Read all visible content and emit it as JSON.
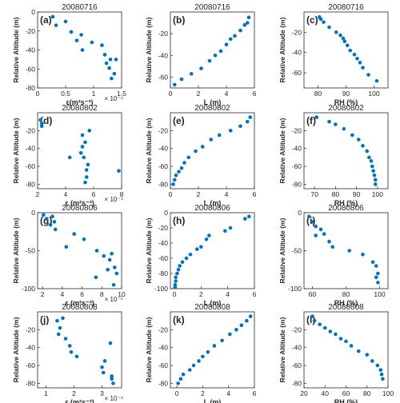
{
  "figure": {
    "colors": {
      "marker": "#0072BD",
      "axes": "#262626",
      "background": "#ffffff"
    }
  },
  "chart_data": [
    {
      "type": "scatter",
      "panel": "(a)",
      "title": "20080716",
      "ylabel": "Relative Altitude (m)",
      "xlabel": "ε(m²s⁻³)",
      "x_exponent": "× 10⁻⁴",
      "xlim": [
        0,
        1.5
      ],
      "xticks": [
        0,
        0.5,
        1,
        1.5
      ],
      "xticklabels": [
        "0",
        "0.5",
        "1",
        "1.5"
      ],
      "ylim": [
        -80,
        0
      ],
      "yticks": [
        -80,
        -60,
        -40,
        -20,
        0
      ],
      "yticklabels": [
        "-80",
        "-60",
        "-40",
        "-20",
        "0"
      ],
      "x": [
        0.27,
        0.33,
        0.5,
        0.6,
        0.7,
        0.78,
        0.8,
        0.97,
        1.15,
        1.2,
        1.3,
        1.23,
        1.4,
        1.28,
        1.37,
        1.32
      ],
      "y": [
        -5,
        -14,
        -10,
        -21,
        -30,
        -24,
        -40,
        -32,
        -35,
        -45,
        -50,
        -54,
        -50,
        -59,
        -65,
        -70
      ]
    },
    {
      "type": "scatter",
      "panel": "(b)",
      "title": "20080716",
      "ylabel": "Relative Altitude (m)",
      "xlabel": "L (m)",
      "xlim": [
        0,
        6
      ],
      "xticks": [
        0,
        2,
        4,
        6
      ],
      "xticklabels": [
        "0",
        "2",
        "4",
        "6"
      ],
      "ylim": [
        -70,
        0
      ],
      "yticks": [
        -60,
        -40,
        -20
      ],
      "yticklabels": [
        "-60",
        "-40",
        "-20"
      ],
      "x": [
        5.6,
        5.5,
        5.3,
        5.0,
        4.6,
        4.3,
        4.0,
        3.6,
        3.2,
        2.8,
        2.2,
        1.5,
        0.8,
        0.3
      ],
      "y": [
        -5,
        -10,
        -12,
        -17,
        -22,
        -25,
        -30,
        -36,
        -40,
        -45,
        -52,
        -57,
        -62,
        -67
      ]
    },
    {
      "type": "scatter",
      "panel": "(c)",
      "title": "20080716",
      "ylabel": "Relative Altitude (m)",
      "xlabel": "RH (%)",
      "xlim": [
        75,
        105
      ],
      "xticks": [
        80,
        90,
        100
      ],
      "xticklabels": [
        "80",
        "90",
        "100"
      ],
      "ylim": [
        -75,
        0
      ],
      "yticks": [
        -60,
        -40,
        -20
      ],
      "yticklabels": [
        "-60",
        "-40",
        "-20"
      ],
      "x": [
        80.5,
        81,
        82,
        84,
        86.5,
        88,
        89,
        89.5,
        90.5,
        91.5,
        93,
        94,
        95,
        96,
        98,
        101
      ],
      "y": [
        -5,
        -7,
        -10,
        -15,
        -20,
        -23,
        -26,
        -29,
        -33,
        -38,
        -42,
        -46,
        -50,
        -55,
        -62,
        -68
      ]
    },
    {
      "type": "scatter",
      "panel": "(d)",
      "title": "20080802",
      "ylabel": "Relative Altitude (m)",
      "xlabel": "ε (m²s⁻³)",
      "x_exponent": "× 10⁻⁴",
      "xlim": [
        2,
        8
      ],
      "xticks": [
        2,
        4,
        6,
        8
      ],
      "xticklabels": [
        "2",
        "4",
        "6",
        "8"
      ],
      "ylim": [
        -85,
        0
      ],
      "yticks": [
        -80,
        -60,
        -40,
        -20
      ],
      "yticklabels": [
        "-80",
        "-60",
        "-40",
        "-20"
      ],
      "x": [
        2.2,
        2.3,
        2.3,
        5.7,
        5.2,
        5.4,
        5.2,
        5.1,
        4.3,
        5.3,
        5.6,
        5.5,
        7.8,
        5.5,
        5.4
      ],
      "y": [
        -8,
        -12,
        -15,
        -20,
        -25,
        -33,
        -38,
        -45,
        -50,
        -50,
        -58,
        -64,
        -65,
        -72,
        -78
      ]
    },
    {
      "type": "scatter",
      "panel": "(e)",
      "title": "20080802",
      "ylabel": "Relative Altitude (m)",
      "xlabel": "L (m)",
      "xlim": [
        0,
        6
      ],
      "xticks": [
        0,
        2,
        4,
        6
      ],
      "xticklabels": [
        "0",
        "2",
        "4",
        "6"
      ],
      "ylim": [
        -85,
        0
      ],
      "yticks": [
        -80,
        -60,
        -40,
        -20
      ],
      "yticklabels": [
        "-80",
        "-60",
        "-40",
        "-20"
      ],
      "x": [
        5.7,
        5.5,
        5.0,
        4.3,
        3.5,
        2.9,
        2.3,
        1.8,
        1.3,
        1.0,
        0.8,
        0.6,
        0.4,
        0.3,
        0.2
      ],
      "y": [
        -5,
        -10,
        -15,
        -20,
        -25,
        -30,
        -38,
        -43,
        -50,
        -56,
        -62,
        -66,
        -70,
        -75,
        -80
      ]
    },
    {
      "type": "scatter",
      "panel": "(f)",
      "title": "20080802",
      "ylabel": "Relative Altitude (m)",
      "xlabel": "RH (%)",
      "xlim": [
        65,
        105
      ],
      "xticks": [
        70,
        80,
        90,
        100
      ],
      "xticklabels": [
        "70",
        "80",
        "90",
        "100"
      ],
      "ylim": [
        -85,
        0
      ],
      "yticks": [
        -80,
        -60,
        -40,
        -20
      ],
      "yticklabels": [
        "-80",
        "-60",
        "-40",
        "-20"
      ],
      "x": [
        71,
        77,
        80,
        84,
        88,
        91,
        93,
        95,
        96,
        97,
        97.5,
        98,
        98.5,
        99,
        99
      ],
      "y": [
        -5,
        -10,
        -13,
        -18,
        -25,
        -30,
        -37,
        -43,
        -50,
        -54,
        -60,
        -65,
        -70,
        -75,
        -80
      ]
    },
    {
      "type": "scatter",
      "panel": "(g)",
      "title": "20080806",
      "ylabel": "Relative Altitude (m)",
      "xlabel": "ε (m²s⁻³)",
      "x_exponent": "× 10⁻⁵",
      "xlim": [
        1.5,
        10
      ],
      "xticks": [
        2,
        4,
        6,
        8,
        10
      ],
      "xticklabels": [
        "2",
        "4",
        "6",
        "8",
        "10"
      ],
      "ylim": [
        -100,
        0
      ],
      "yticks": [
        -100,
        -50,
        0
      ],
      "yticklabels": [
        "-100",
        "-50",
        "0"
      ],
      "x": [
        2.1,
        2.4,
        3.0,
        3.2,
        2.8,
        3.3,
        4.4,
        5.2,
        6.2,
        7.5,
        8.2,
        8.8,
        9.0,
        9.3,
        8.6,
        7.4,
        9.5,
        9.2
      ],
      "y": [
        -3,
        -8,
        -5,
        -12,
        -16,
        -22,
        -45,
        -28,
        -35,
        -50,
        -57,
        -62,
        -54,
        -72,
        -75,
        -85,
        -80,
        -95
      ]
    },
    {
      "type": "scatter",
      "panel": "(h)",
      "title": "20080806",
      "ylabel": "Relative Altitude (m)",
      "xlabel": "L (m)",
      "xlim": [
        -0.3,
        6
      ],
      "xticks": [
        0,
        2,
        4,
        6
      ],
      "xticklabels": [
        "0",
        "2",
        "4",
        "6"
      ],
      "ylim": [
        -100,
        0
      ],
      "yticks": [
        -100,
        -80,
        -60,
        -40,
        -20,
        0
      ],
      "yticklabels": [
        "-100",
        "-80",
        "-60",
        "-40",
        "-20",
        "0"
      ],
      "x": [
        5.6,
        5.3,
        4.2,
        3.8,
        2.6,
        2.4,
        2.0,
        1.7,
        1.2,
        0.9,
        0.6,
        0.4,
        0.3,
        0.2,
        0.1,
        0.1,
        0.05,
        0.05
      ],
      "y": [
        -5,
        -8,
        -20,
        -24,
        -30,
        -35,
        -45,
        -48,
        -55,
        -60,
        -65,
        -70,
        -75,
        -80,
        -85,
        -90,
        -95,
        -98
      ]
    },
    {
      "type": "scatter",
      "panel": "(i)",
      "title": "20080806",
      "ylabel": "Relative Altitude (m)",
      "xlabel": "RH (%)",
      "xlim": [
        55,
        105
      ],
      "xticks": [
        60,
        80,
        100
      ],
      "xticklabels": [
        "60",
        "80",
        "100"
      ],
      "ylim": [
        -100,
        0
      ],
      "yticks": [
        -100,
        -50,
        0
      ],
      "yticklabels": [
        "-100",
        "-50",
        "0"
      ],
      "x": [
        58,
        60,
        62,
        65,
        67,
        62,
        70,
        72,
        82,
        90,
        96,
        98,
        99,
        98,
        99
      ],
      "y": [
        -5,
        -12,
        -18,
        -22,
        -28,
        -30,
        -38,
        -45,
        -50,
        -55,
        -65,
        -70,
        -80,
        -85,
        -92
      ]
    },
    {
      "type": "scatter",
      "panel": "(j)",
      "title": "20080808",
      "ylabel": "Relative Altitude (m)",
      "xlabel": "ε (m²s⁻³)",
      "x_exponent": "× 10⁻⁴",
      "xlim": [
        0.7,
        3.7
      ],
      "xticks": [
        1,
        2,
        3
      ],
      "xticklabels": [
        "1",
        "2",
        "3"
      ],
      "ylim": [
        -85,
        0
      ],
      "yticks": [
        -80,
        -60,
        -40,
        -20
      ],
      "yticklabels": [
        "-80",
        "-60",
        "-40",
        "-20"
      ],
      "x": [
        1.4,
        1.6,
        1.5,
        1.45,
        1.7,
        1.85,
        1.9,
        2.1,
        3.3,
        3.1,
        3.0,
        3.05,
        3.35,
        3.35,
        3.4
      ],
      "y": [
        -10,
        -7,
        -18,
        -25,
        -30,
        -38,
        -45,
        -50,
        -35,
        -55,
        -62,
        -68,
        -72,
        -75,
        -80
      ]
    },
    {
      "type": "scatter",
      "panel": "(k)",
      "title": "20080808",
      "ylabel": "Relative Altitude (m)",
      "xlabel": "L (m)",
      "xlim": [
        -0.5,
        6
      ],
      "xticks": [
        0,
        2,
        4,
        6
      ],
      "xticklabels": [
        "0",
        "2",
        "4",
        "6"
      ],
      "ylim": [
        -85,
        0
      ],
      "yticks": [
        -80,
        -60,
        -40,
        -20
      ],
      "yticklabels": [
        "-80",
        "-60",
        "-40",
        "-20"
      ],
      "x": [
        5.7,
        5.4,
        5.0,
        4.6,
        4.1,
        3.5,
        2.9,
        2.4,
        2.0,
        1.7,
        1.3,
        1.0,
        0.5,
        0.3,
        0.1
      ],
      "y": [
        -5,
        -10,
        -15,
        -20,
        -25,
        -32,
        -38,
        -45,
        -50,
        -55,
        -60,
        -65,
        -70,
        -75,
        -80
      ]
    },
    {
      "type": "scatter",
      "panel": "(l)",
      "title": "20080808",
      "ylabel": "Relative Altitude (m)",
      "xlabel": "RH (%)",
      "xlim": [
        20,
        100
      ],
      "xticks": [
        20,
        40,
        60,
        80,
        100
      ],
      "xticklabels": [
        "20",
        "40",
        "60",
        "80",
        "100"
      ],
      "ylim": [
        -85,
        0
      ],
      "yticks": [
        -80,
        -60,
        -40,
        -20
      ],
      "yticklabels": [
        "-80",
        "-60",
        "-40",
        "-20"
      ],
      "x": [
        28,
        30,
        35,
        40,
        45,
        50,
        55,
        60,
        65,
        72,
        80,
        85,
        90,
        93,
        94,
        95
      ],
      "y": [
        -5,
        -10,
        -14,
        -18,
        -22,
        -25,
        -30,
        -33,
        -38,
        -44,
        -48,
        -55,
        -60,
        -65,
        -70,
        -75
      ]
    }
  ]
}
